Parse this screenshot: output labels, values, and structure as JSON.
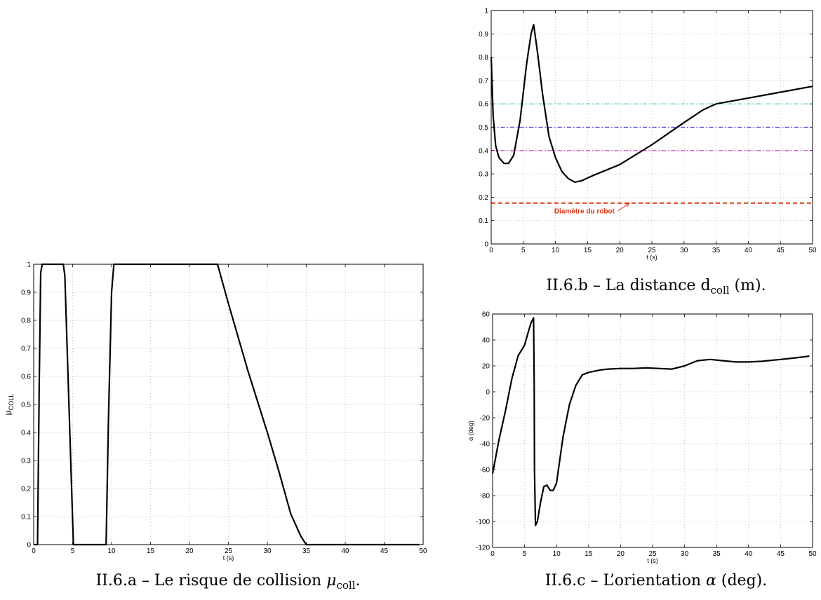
{
  "captions": {
    "a": {
      "prefix": "II.6.a – Le risque de collision ",
      "symbol": "μ",
      "sub": "coll",
      "suffix": "."
    },
    "b": {
      "prefix": "II.6.b – La distance d",
      "sub": "coll",
      "suffix": " (m)."
    },
    "c": {
      "prefix": "II.6.c – L’orientation ",
      "symbol": "α",
      "suffix": " (deg)."
    }
  },
  "chart_data": [
    {
      "id": "a",
      "type": "line",
      "xlabel": "t (s)",
      "ylabel": "μ",
      "ylabel_sub": "COLL",
      "xlim": [
        0,
        50
      ],
      "ylim": [
        0,
        1
      ],
      "xticks": [
        0,
        5,
        10,
        15,
        20,
        25,
        30,
        35,
        40,
        45,
        50
      ],
      "yticks": [
        0,
        0.1,
        0.2,
        0.3,
        0.4,
        0.5,
        0.6,
        0.7,
        0.8,
        0.9,
        1
      ],
      "grid": true,
      "series": [
        {
          "color": "#000000",
          "x": [
            0,
            0.5,
            0.7,
            0.9,
            1.1,
            1.3,
            3.8,
            4.0,
            5.1,
            9.3,
            9.6,
            10.0,
            10.3,
            23.6,
            25,
            27.5,
            30,
            31.5,
            33,
            34.3,
            35,
            49.5
          ],
          "y": [
            0,
            0,
            0.55,
            0.97,
            1,
            1,
            1,
            0.96,
            0,
            0,
            0.45,
            0.9,
            1,
            1,
            0.86,
            0.62,
            0.4,
            0.26,
            0.11,
            0.03,
            0,
            0
          ]
        }
      ]
    },
    {
      "id": "b",
      "type": "line",
      "xlabel": "t (s)",
      "xlim": [
        0,
        50
      ],
      "ylim": [
        0,
        1
      ],
      "xticks": [
        0,
        5,
        10,
        15,
        20,
        25,
        30,
        35,
        40,
        45,
        50
      ],
      "yticks": [
        0,
        0.1,
        0.2,
        0.3,
        0.4,
        0.5,
        0.6,
        0.7,
        0.8,
        0.9,
        1
      ],
      "grid": true,
      "hlines": [
        {
          "y": 0.6,
          "color": "#33cccc",
          "style": "dashdot"
        },
        {
          "y": 0.5,
          "color": "#3333dd",
          "style": "dashdot"
        },
        {
          "y": 0.4,
          "color": "#cc33cc",
          "style": "dashdot"
        },
        {
          "y": 0.175,
          "color": "#dd3311",
          "style": "dashed"
        }
      ],
      "annotation": {
        "text": "Diamètre du robot",
        "color": "#dd3311",
        "x": 14.5,
        "y": 0.13,
        "arrow_to": [
          21.5,
          0.175
        ]
      },
      "series": [
        {
          "color": "#000000",
          "x": [
            0,
            0.3,
            0.7,
            1.2,
            2,
            2.7,
            3.5,
            4.5,
            5.5,
            6.2,
            6.6,
            7.2,
            8,
            9,
            10,
            11,
            12,
            13,
            14,
            16,
            20,
            25,
            30,
            33,
            35,
            40,
            45,
            50
          ],
          "y": [
            0.8,
            0.55,
            0.42,
            0.37,
            0.345,
            0.345,
            0.38,
            0.53,
            0.77,
            0.9,
            0.94,
            0.82,
            0.64,
            0.46,
            0.37,
            0.31,
            0.28,
            0.265,
            0.27,
            0.295,
            0.34,
            0.425,
            0.52,
            0.575,
            0.6,
            0.625,
            0.65,
            0.675
          ]
        }
      ]
    },
    {
      "id": "c",
      "type": "line",
      "xlabel": "t (s)",
      "ylabel": "α (deg)",
      "xlim": [
        0,
        50
      ],
      "ylim": [
        -120,
        60
      ],
      "xticks": [
        0,
        5,
        10,
        15,
        20,
        25,
        30,
        35,
        40,
        45,
        50
      ],
      "yticks": [
        -120,
        -100,
        -80,
        -60,
        -40,
        -20,
        0,
        20,
        40,
        60
      ],
      "grid": true,
      "series": [
        {
          "color": "#000000",
          "x": [
            0,
            0.5,
            1,
            2,
            3,
            4,
            5,
            5.5,
            6,
            6.4,
            6.5,
            6.55,
            6.7,
            7,
            7.5,
            8,
            8.5,
            9,
            9.5,
            10,
            11,
            12,
            13,
            14,
            15,
            16,
            17,
            18,
            20,
            22,
            24,
            26,
            28,
            30,
            32,
            34,
            36,
            38,
            40,
            42,
            45,
            47,
            49.5
          ],
          "y": [
            -63,
            -50,
            -37,
            -15,
            10,
            28,
            36,
            45,
            53,
            57,
            5,
            -60,
            -103,
            -100,
            -85,
            -73,
            -72,
            -76,
            -76,
            -70,
            -35,
            -10,
            5,
            13,
            15,
            16,
            17,
            17.5,
            18,
            18,
            18.5,
            18,
            17.5,
            20,
            24,
            25,
            24,
            23,
            23,
            23.5,
            25,
            26,
            27.5
          ]
        }
      ]
    }
  ]
}
